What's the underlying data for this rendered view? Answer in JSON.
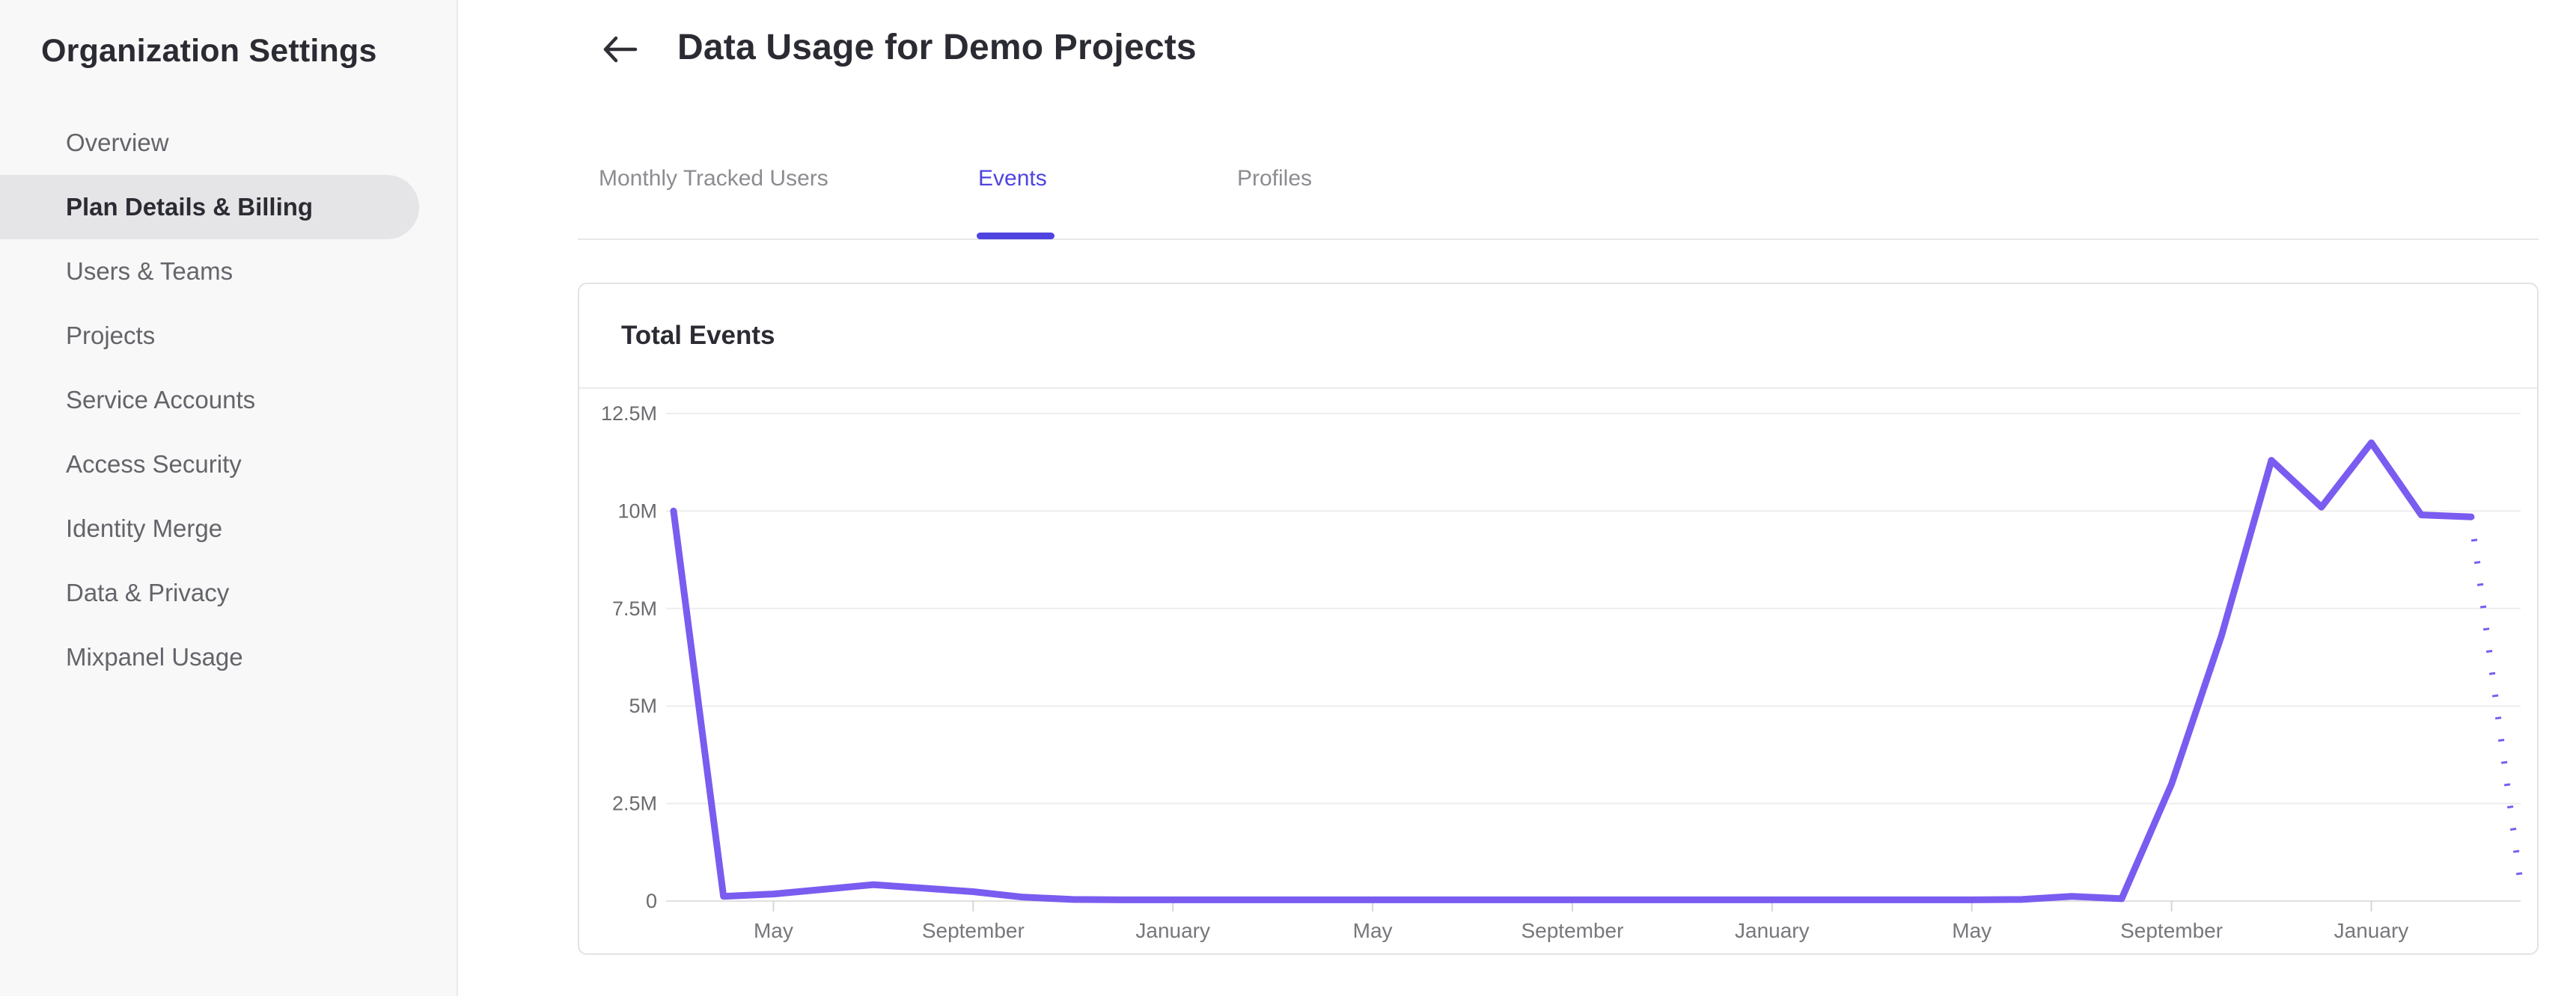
{
  "sidebar": {
    "title": "Organization Settings",
    "items": [
      {
        "label": "Overview",
        "active": false
      },
      {
        "label": "Plan Details & Billing",
        "active": true
      },
      {
        "label": "Users & Teams",
        "active": false
      },
      {
        "label": "Projects",
        "active": false
      },
      {
        "label": "Service Accounts",
        "active": false
      },
      {
        "label": "Access Security",
        "active": false
      },
      {
        "label": "Identity Merge",
        "active": false
      },
      {
        "label": "Data & Privacy",
        "active": false
      },
      {
        "label": "Mixpanel Usage",
        "active": false
      }
    ]
  },
  "header": {
    "back_icon": "left-arrow",
    "title": "Data Usage for Demo Projects"
  },
  "tabs": [
    {
      "label": "Monthly Tracked Users",
      "active": false
    },
    {
      "label": "Events",
      "active": true
    },
    {
      "label": "Profiles",
      "active": false
    }
  ],
  "card": {
    "title": "Total Events"
  },
  "colors": {
    "line": "#7a5cf0",
    "accent": "#4f44e0",
    "gridline": "#ededed",
    "axis_line": "#e0e0e0",
    "tick": "#d6d6d6",
    "sidebar_bg": "#f8f8f8",
    "active_pill_bg": "#e5e5e7",
    "text_dark": "#2b2b33",
    "text_gray": "#64646a"
  },
  "chart_data": {
    "type": "line",
    "title": "Total Events",
    "series": [
      {
        "name": "Total Events",
        "values": [
          10000000,
          120000,
          180000,
          300000,
          420000,
          330000,
          240000,
          100000,
          40000,
          30000,
          30000,
          30000,
          30000,
          30000,
          30000,
          30000,
          30000,
          30000,
          30000,
          30000,
          30000,
          30000,
          30000,
          30000,
          30000,
          30000,
          30000,
          40000,
          120000,
          60000,
          3000000,
          6800000,
          11300000,
          10100000,
          11750000,
          9900000,
          9850000,
          350000
        ]
      }
    ],
    "x_interval": "monthly",
    "x_tick_indices": [
      2,
      6,
      10,
      14,
      18,
      22,
      26,
      30,
      34
    ],
    "x_tick_labels": [
      "May",
      "September",
      "January",
      "May",
      "September",
      "January",
      "May",
      "September",
      "January"
    ],
    "y_ticks": [
      "12.5M",
      "10M",
      "7.5M",
      "5M",
      "2.5M",
      "0"
    ],
    "y_tick_values": [
      12500000,
      10000000,
      7500000,
      5000000,
      2500000,
      0
    ],
    "ylim": [
      0,
      12500000
    ],
    "dashed_segment_start_index": 36,
    "legend": "none",
    "grid": "horizontal"
  }
}
